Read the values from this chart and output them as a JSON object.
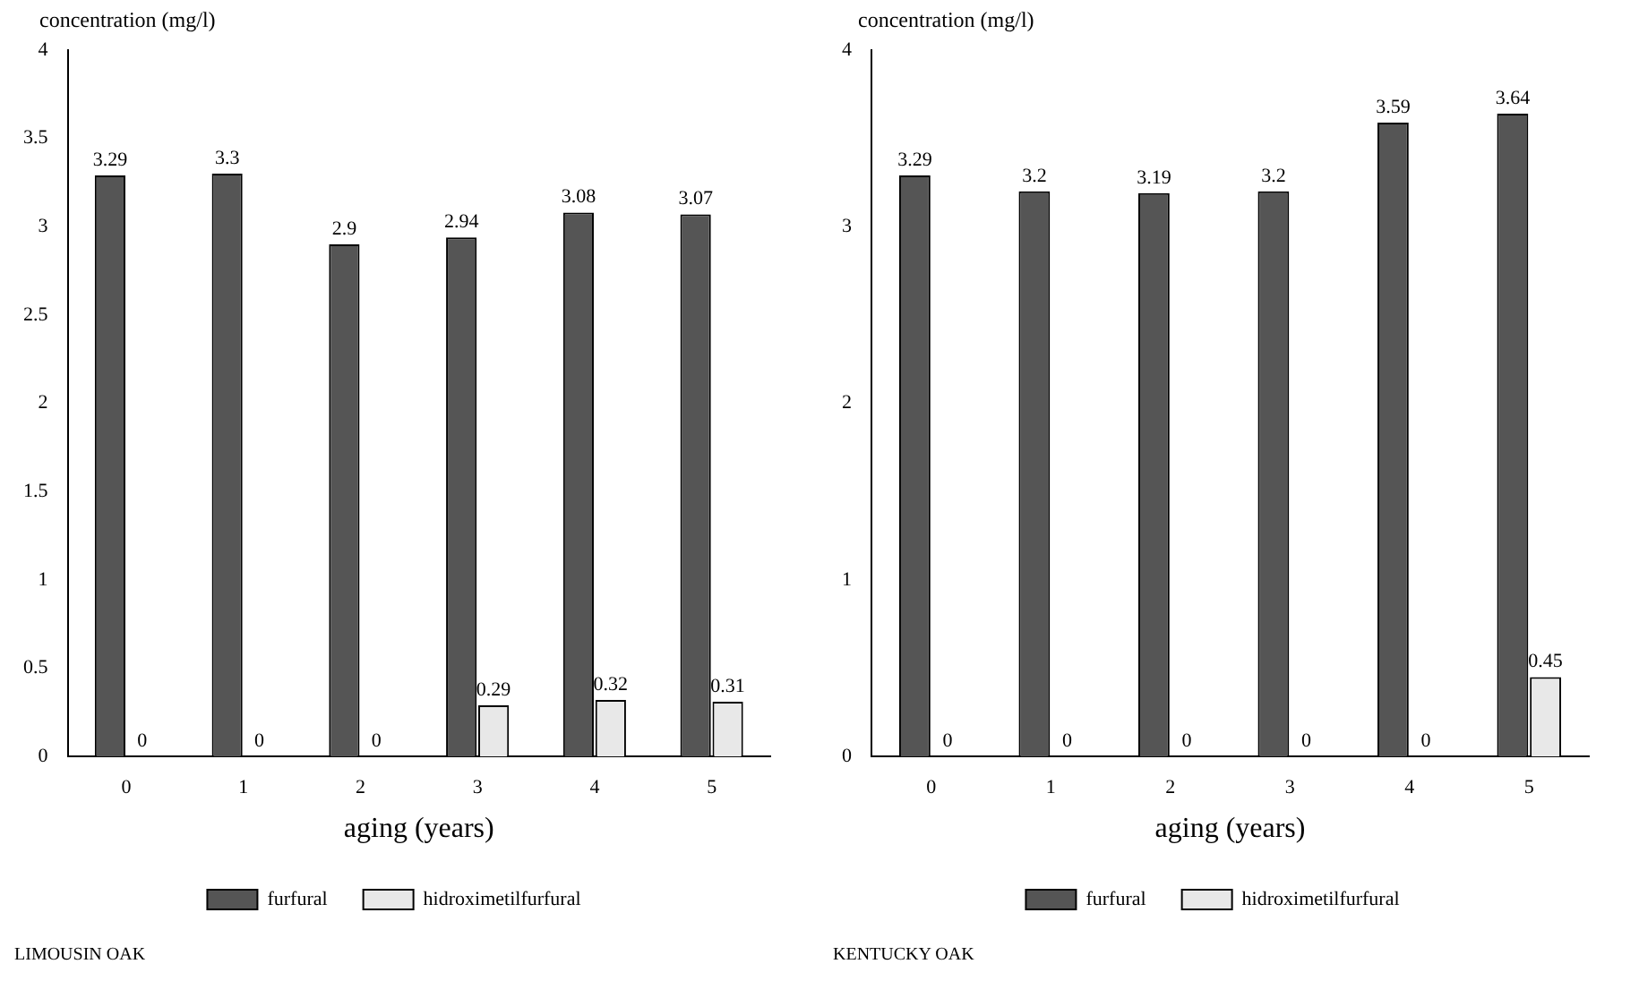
{
  "chart_data": [
    {
      "type": "bar",
      "ylabel": "concentration (mg/l)",
      "xlabel": "aging (years)",
      "categories": [
        "0",
        "1",
        "2",
        "3",
        "4",
        "5"
      ],
      "series": [
        {
          "name": "furfural",
          "color": "#555555",
          "values": [
            3.29,
            3.3,
            2.9,
            2.94,
            3.08,
            3.07
          ]
        },
        {
          "name": "hidroximetilfurfural",
          "color": "#e8e8e8",
          "values": [
            0,
            0,
            0,
            0.29,
            0.32,
            0.31
          ]
        }
      ],
      "ylim": [
        0,
        4
      ],
      "yticks": [
        0,
        0.5,
        1,
        1.5,
        2,
        2.5,
        3,
        3.5,
        4
      ],
      "data_labels": true,
      "legend": "bottom",
      "annotations": [
        "LIMOUSIN OAK"
      ]
    },
    {
      "type": "bar",
      "ylabel": "concentration (mg/l)",
      "xlabel": "aging (years)",
      "categories": [
        "0",
        "1",
        "2",
        "3",
        "4",
        "5"
      ],
      "series": [
        {
          "name": "furfural",
          "color": "#555555",
          "values": [
            3.29,
            3.2,
            3.19,
            3.2,
            3.59,
            3.64
          ]
        },
        {
          "name": "hidroximetilfurfural",
          "color": "#e8e8e8",
          "values": [
            0,
            0,
            0,
            0,
            0,
            0.45
          ]
        }
      ],
      "ylim": [
        0,
        4
      ],
      "yticks": [
        0,
        1,
        2,
        3,
        4
      ],
      "data_labels": true,
      "legend": "bottom",
      "annotations": [
        "KENTUCKY OAK"
      ]
    }
  ]
}
